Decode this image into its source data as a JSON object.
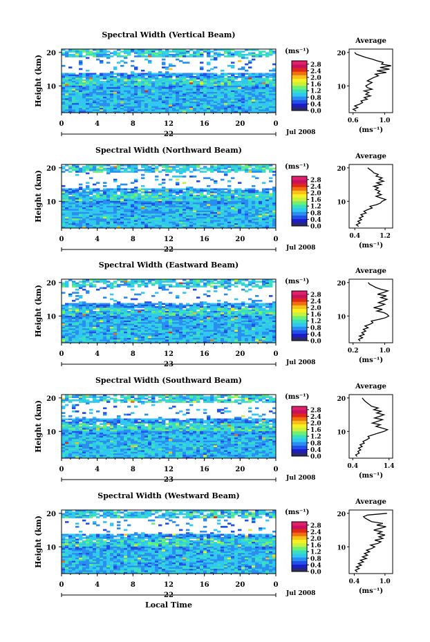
{
  "figure": {
    "x_axis_title": "Local Time",
    "colorbar_unit": "(ms⁻¹)",
    "average_unit": "(ms⁻¹)",
    "average_title": "Average",
    "height_label": "Height (km)",
    "month_year": "Jul 2008"
  },
  "chart_data": [
    {
      "type": "heatmap",
      "title": "Spectral Width (Vertical Beam)",
      "ylabel": "Height (km)",
      "xlabel": "Local Time",
      "x_ticks": [
        "0",
        "4",
        "8",
        "12",
        "16",
        "20",
        "0"
      ],
      "xlim": [
        0,
        24
      ],
      "date_label": "22",
      "month_year": "Jul 2008",
      "y_ticks": [
        "20",
        "10"
      ],
      "ylim": [
        2,
        21
      ],
      "colorbar": {
        "unit": "(ms⁻¹)",
        "ticks": [
          "2.8",
          "2.4",
          "2.0",
          "1.6",
          "1.2",
          "0.8",
          "0.4",
          "0.0"
        ],
        "range": [
          0,
          3.0
        ],
        "colors": [
          "#2b2b6b",
          "#1c1cc8",
          "#2050e8",
          "#2a8ef0",
          "#30c8f0",
          "#38e0c0",
          "#70f070",
          "#c8f040",
          "#f8f020",
          "#f8c018",
          "#f07010",
          "#e02818",
          "#c81060",
          "#e0206a"
        ]
      },
      "average": {
        "title": "Average",
        "unit": "(ms⁻¹)",
        "x_ticks": [
          "0.6",
          "1.0"
        ],
        "xlim": [
          0.55,
          1.1
        ],
        "y_ticks": [
          "20",
          "10"
        ],
        "ylim": [
          2,
          21
        ],
        "heights": [
          2.5,
          3.0,
          3.5,
          4.0,
          4.5,
          5.0,
          5.5,
          6.0,
          6.5,
          7.0,
          7.5,
          8.0,
          8.5,
          9.0,
          9.5,
          10.0,
          10.5,
          11.0,
          11.5,
          12.0,
          12.5,
          13.0,
          13.5,
          14.0,
          14.5,
          15.0,
          15.5,
          16.0,
          16.5,
          17.0,
          17.5,
          18.0,
          18.5,
          19.0,
          19.5,
          20.0
        ],
        "values": [
          0.64,
          0.6,
          0.66,
          0.62,
          0.68,
          0.72,
          0.7,
          0.78,
          0.74,
          0.82,
          0.76,
          0.8,
          0.74,
          0.84,
          0.78,
          0.76,
          0.8,
          0.84,
          0.78,
          0.82,
          0.86,
          0.92,
          0.88,
          1.02,
          0.9,
          1.06,
          0.94,
          1.08,
          0.96,
          0.98,
          0.9,
          0.84,
          0.76,
          0.7,
          0.64,
          0.62
        ]
      }
    },
    {
      "type": "heatmap",
      "title": "Spectral Width (Northward Beam)",
      "ylabel": "Height (km)",
      "xlabel": "Local Time",
      "x_ticks": [
        "0",
        "4",
        "8",
        "12",
        "16",
        "20",
        "0"
      ],
      "xlim": [
        0,
        24
      ],
      "date_label": "22",
      "month_year": "Jul 2008",
      "y_ticks": [
        "20",
        "10"
      ],
      "ylim": [
        2,
        21
      ],
      "colorbar": {
        "unit": "(ms⁻¹)",
        "ticks": [
          "2.8",
          "2.4",
          "2.0",
          "1.6",
          "1.2",
          "0.8",
          "0.4",
          "0.0"
        ],
        "range": [
          0,
          3.0
        ],
        "colors": [
          "#2b2b6b",
          "#1c1cc8",
          "#2050e8",
          "#2a8ef0",
          "#30c8f0",
          "#38e0c0",
          "#70f070",
          "#c8f040",
          "#f8f020",
          "#f8c018",
          "#f07010",
          "#e02818",
          "#c81060",
          "#e0206a"
        ]
      },
      "average": {
        "title": "Average",
        "unit": "(ms⁻¹)",
        "x_ticks": [
          "0.4",
          "1.2"
        ],
        "xlim": [
          0.25,
          1.4
        ],
        "y_ticks": [
          "20",
          "10"
        ],
        "ylim": [
          2,
          21
        ],
        "heights": [
          2.5,
          3.0,
          3.5,
          4.0,
          4.5,
          5.0,
          5.5,
          6.0,
          6.5,
          7.0,
          7.5,
          8.0,
          8.5,
          9.0,
          9.5,
          10.0,
          10.5,
          11.0,
          11.5,
          12.0,
          12.5,
          13.0,
          13.5,
          14.0,
          14.5,
          15.0,
          15.5,
          16.0,
          16.5,
          17.0,
          17.5,
          18.0,
          18.5,
          19.0,
          19.5,
          20.0
        ],
        "values": [
          0.5,
          0.44,
          0.54,
          0.48,
          0.58,
          0.52,
          0.62,
          0.56,
          0.7,
          0.64,
          0.74,
          0.86,
          0.8,
          0.98,
          1.08,
          1.12,
          1.22,
          1.08,
          0.96,
          1.1,
          1.0,
          1.06,
          0.94,
          1.02,
          0.9,
          1.1,
          0.98,
          1.16,
          1.04,
          1.12,
          0.96,
          1.02,
          0.9,
          0.86,
          0.8,
          0.74
        ]
      }
    },
    {
      "type": "heatmap",
      "title": "Spectral Width (Eastward Beam)",
      "ylabel": "Height (km)",
      "xlabel": "Local Time",
      "x_ticks": [
        "0",
        "4",
        "8",
        "12",
        "16",
        "20",
        "0"
      ],
      "xlim": [
        0,
        24
      ],
      "date_label": "23",
      "month_year": "Jul 2008",
      "y_ticks": [
        "20",
        "10"
      ],
      "ylim": [
        2,
        21
      ],
      "colorbar": {
        "unit": "(ms⁻¹)",
        "ticks": [
          "2.8",
          "2.4",
          "2.0",
          "1.6",
          "1.2",
          "0.8",
          "0.4",
          "0.0"
        ],
        "range": [
          0,
          3.0
        ],
        "colors": [
          "#2b2b6b",
          "#1c1cc8",
          "#2050e8",
          "#2a8ef0",
          "#30c8f0",
          "#38e0c0",
          "#70f070",
          "#c8f040",
          "#f8f020",
          "#f8c018",
          "#f07010",
          "#e02818",
          "#c81060",
          "#e0206a"
        ]
      },
      "average": {
        "title": "Average",
        "unit": "(ms⁻¹)",
        "x_ticks": [
          "0.2",
          "1.0"
        ],
        "xlim": [
          0.1,
          1.2
        ],
        "y_ticks": [
          "20",
          "10"
        ],
        "ylim": [
          2,
          21
        ],
        "heights": [
          2.5,
          3.0,
          3.5,
          4.0,
          4.5,
          5.0,
          5.5,
          6.0,
          6.5,
          7.0,
          7.5,
          8.0,
          8.5,
          9.0,
          9.5,
          10.0,
          10.5,
          11.0,
          11.5,
          12.0,
          12.5,
          13.0,
          13.5,
          14.0,
          14.5,
          15.0,
          15.5,
          16.0,
          16.5,
          17.0,
          17.5,
          18.0,
          18.5,
          19.0,
          19.5,
          20.0
        ],
        "values": [
          0.38,
          0.34,
          0.44,
          0.36,
          0.48,
          0.42,
          0.52,
          0.46,
          0.58,
          0.5,
          0.62,
          0.7,
          0.66,
          0.86,
          1.02,
          1.1,
          1.06,
          0.98,
          0.8,
          0.94,
          0.72,
          0.88,
          1.0,
          0.84,
          0.96,
          1.06,
          0.9,
          1.04,
          0.82,
          0.96,
          1.08,
          0.9,
          0.78,
          0.7,
          0.62,
          0.58
        ]
      }
    },
    {
      "type": "heatmap",
      "title": "Spectral Width (Southward Beam)",
      "ylabel": "Height (km)",
      "xlabel": "Local Time",
      "x_ticks": [
        "0",
        "4",
        "8",
        "12",
        "16",
        "20",
        "0"
      ],
      "xlim": [
        0,
        24
      ],
      "date_label": "23",
      "month_year": "Jul 2008",
      "y_ticks": [
        "20",
        "10"
      ],
      "ylim": [
        2,
        21
      ],
      "colorbar": {
        "unit": "(ms⁻¹)",
        "ticks": [
          "2.8",
          "2.4",
          "2.0",
          "1.6",
          "1.2",
          "0.8",
          "0.4",
          "0.0"
        ],
        "range": [
          0,
          3.0
        ],
        "colors": [
          "#2b2b6b",
          "#1c1cc8",
          "#2050e8",
          "#2a8ef0",
          "#30c8f0",
          "#38e0c0",
          "#70f070",
          "#c8f040",
          "#f8f020",
          "#f8c018",
          "#f07010",
          "#e02818",
          "#c81060",
          "#e0206a"
        ]
      },
      "average": {
        "title": "Average",
        "unit": "(ms⁻¹)",
        "x_ticks": [
          "0.4",
          "1.4"
        ],
        "xlim": [
          0.3,
          1.5
        ],
        "y_ticks": [
          "20",
          "10"
        ],
        "ylim": [
          2,
          21
        ],
        "heights": [
          2.5,
          3.0,
          3.5,
          4.0,
          4.5,
          5.0,
          5.5,
          6.0,
          6.5,
          7.0,
          7.5,
          8.0,
          8.5,
          9.0,
          9.5,
          10.0,
          10.5,
          11.0,
          11.5,
          12.0,
          12.5,
          13.0,
          13.5,
          14.0,
          14.5,
          15.0,
          15.5,
          16.0,
          16.5,
          17.0,
          17.5,
          18.0,
          18.5,
          19.0,
          19.5,
          20.0
        ],
        "values": [
          0.52,
          0.48,
          0.58,
          0.54,
          0.62,
          0.56,
          0.66,
          0.6,
          0.72,
          0.68,
          0.78,
          0.86,
          0.82,
          0.96,
          1.1,
          1.26,
          1.36,
          1.2,
          1.04,
          1.16,
          0.94,
          1.08,
          1.22,
          1.0,
          1.14,
          1.26,
          1.06,
          1.18,
          0.98,
          1.1,
          0.92,
          0.86,
          0.8,
          0.74,
          0.7,
          0.66
        ]
      }
    },
    {
      "type": "heatmap",
      "title": "Spectral Width (Westward Beam)",
      "ylabel": "Height (km)",
      "xlabel": "Local Time",
      "x_ticks": [
        "0",
        "4",
        "8",
        "12",
        "16",
        "20",
        "0"
      ],
      "xlim": [
        0,
        24
      ],
      "date_label": "22",
      "month_year": "Jul 2008",
      "y_ticks": [
        "20",
        "10"
      ],
      "ylim": [
        2,
        21
      ],
      "colorbar": {
        "unit": "(ms⁻¹)",
        "ticks": [
          "2.8",
          "2.4",
          "2.0",
          "1.6",
          "1.2",
          "0.8",
          "0.4",
          "0.0"
        ],
        "range": [
          0,
          3.0
        ],
        "colors": [
          "#2b2b6b",
          "#1c1cc8",
          "#2050e8",
          "#2a8ef0",
          "#30c8f0",
          "#38e0c0",
          "#70f070",
          "#c8f040",
          "#f8f020",
          "#f8c018",
          "#f07010",
          "#e02818",
          "#c81060",
          "#e0206a"
        ]
      },
      "average": {
        "title": "Average",
        "unit": "(ms⁻¹)",
        "x_ticks": [
          "0.4",
          "1.0"
        ],
        "xlim": [
          0.3,
          1.15
        ],
        "y_ticks": [
          "20",
          "10"
        ],
        "ylim": [
          2,
          21
        ],
        "heights": [
          2.5,
          3.0,
          3.5,
          4.0,
          4.5,
          5.0,
          5.5,
          6.0,
          6.5,
          7.0,
          7.5,
          8.0,
          8.5,
          9.0,
          9.5,
          10.0,
          10.5,
          11.0,
          11.5,
          12.0,
          12.5,
          13.0,
          13.5,
          14.0,
          14.5,
          15.0,
          15.5,
          16.0,
          16.5,
          17.0,
          17.5,
          18.0,
          18.5,
          19.0,
          19.5,
          20.0
        ],
        "values": [
          0.46,
          0.42,
          0.5,
          0.44,
          0.54,
          0.48,
          0.58,
          0.52,
          0.64,
          0.56,
          0.66,
          0.6,
          0.7,
          0.64,
          0.74,
          0.8,
          0.72,
          0.86,
          0.92,
          0.8,
          0.96,
          0.88,
          1.0,
          0.86,
          0.94,
          0.78,
          0.9,
          1.02,
          0.84,
          0.96,
          0.74,
          0.68,
          0.62,
          0.58,
          0.66,
          1.04
        ]
      }
    }
  ]
}
